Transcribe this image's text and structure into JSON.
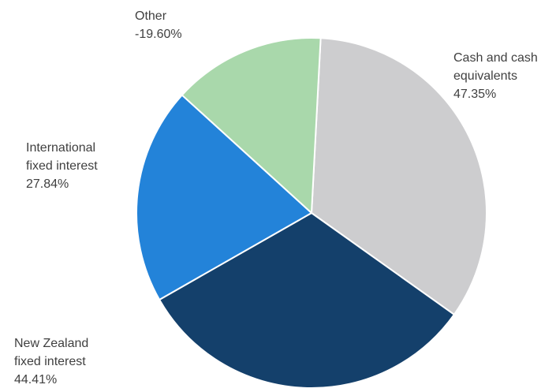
{
  "chart_data": {
    "type": "pie",
    "slices": [
      {
        "label_lines": [
          "Cash and cash",
          "equivalents"
        ],
        "value_label": "47.35%",
        "value": 47.35,
        "color": "#cdcdcf"
      },
      {
        "label_lines": [
          "New Zealand",
          "fixed interest"
        ],
        "value_label": "44.41%",
        "value": 44.41,
        "color": "#14406b"
      },
      {
        "label_lines": [
          "International",
          "fixed interest"
        ],
        "value_label": "27.84%",
        "value": 27.84,
        "color": "#2383d9"
      },
      {
        "label_lines": [
          "Other"
        ],
        "value_label": "-19.60%",
        "value": -19.6,
        "color": "#a9d8ab"
      }
    ],
    "start_angle_deg": 3,
    "direction": "clockwise",
    "slice_border_color": "#ffffff"
  }
}
